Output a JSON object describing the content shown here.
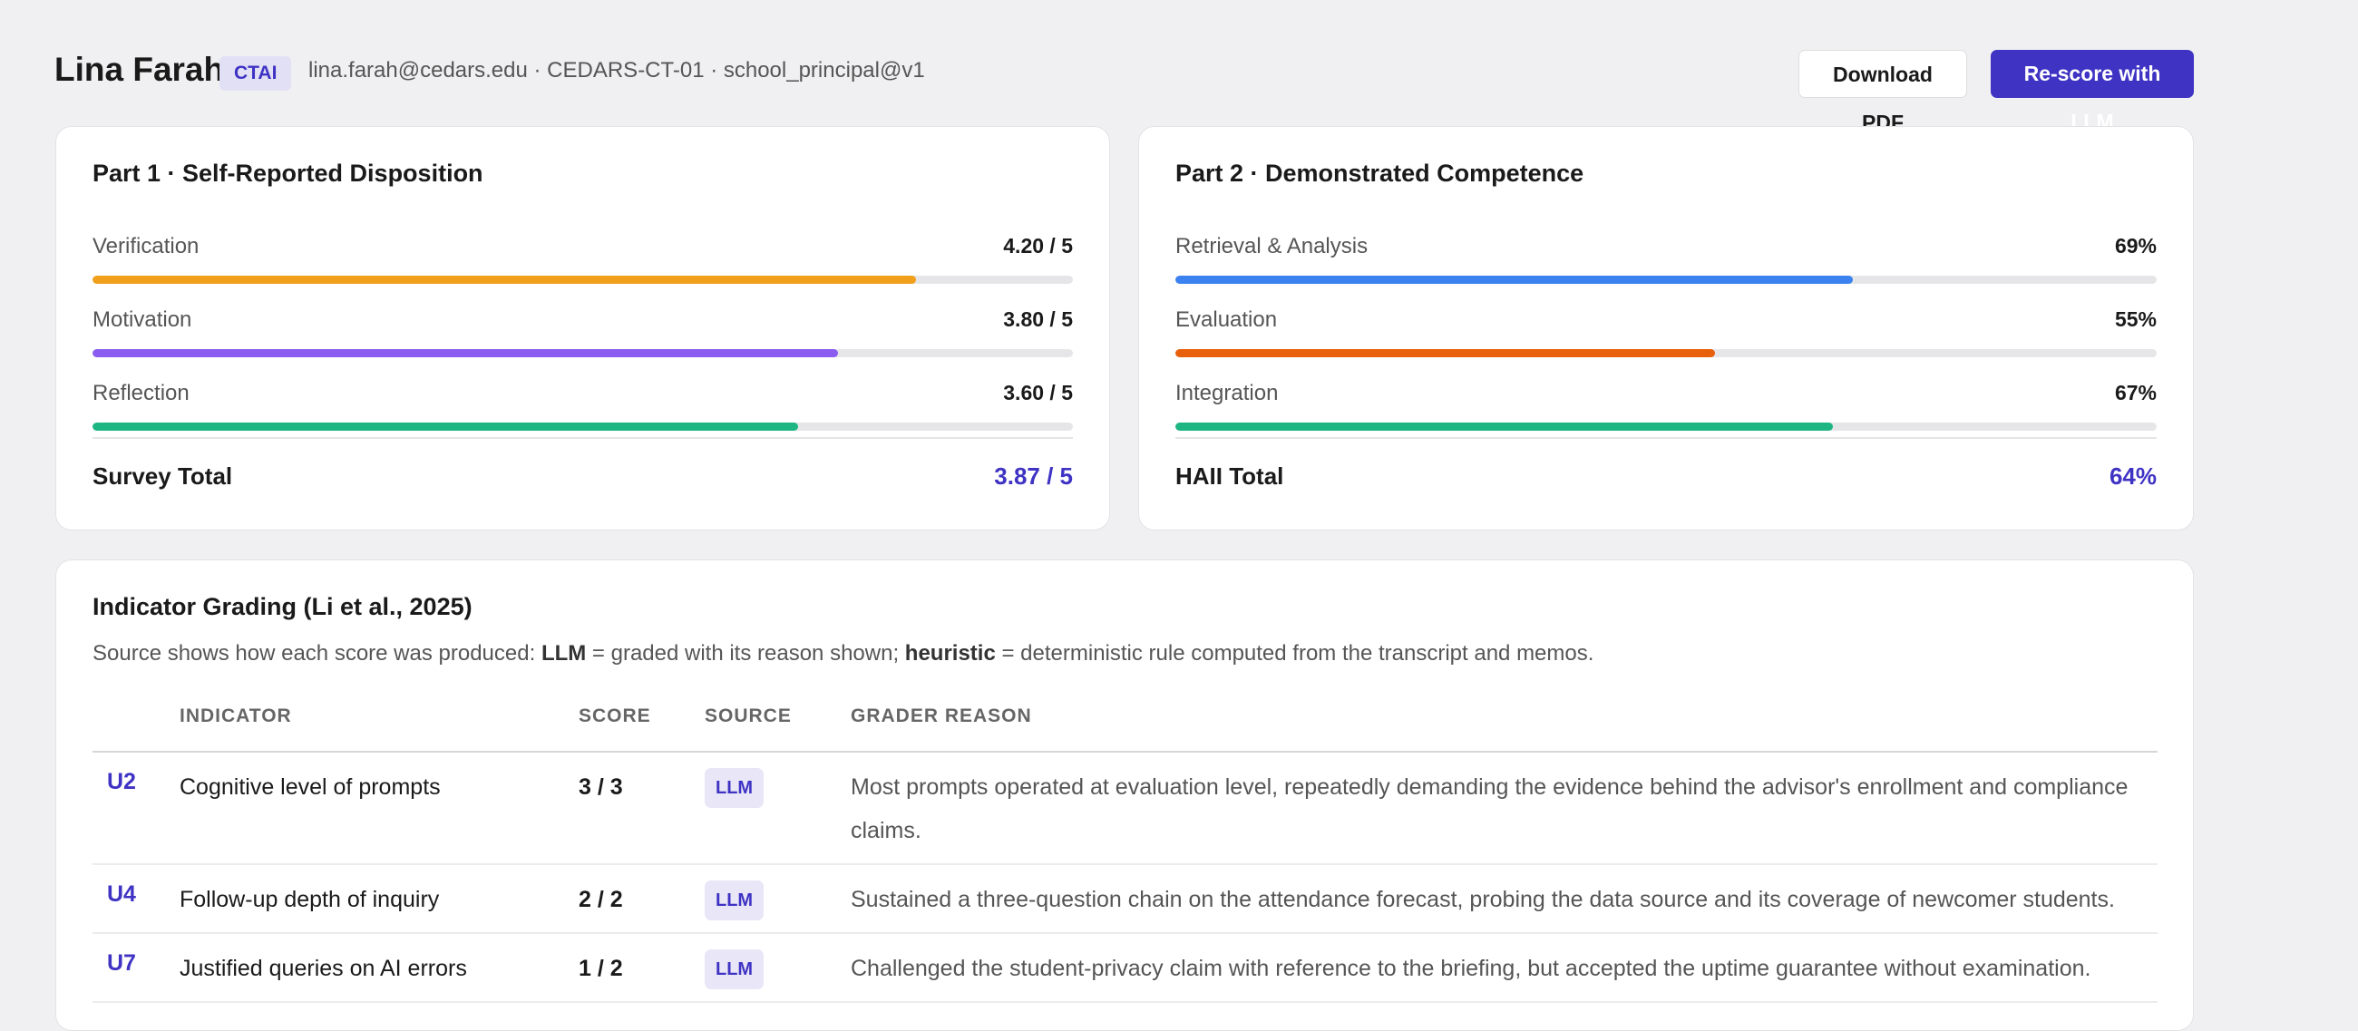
{
  "header": {
    "name": "Lina Farah",
    "badge": "CTAI",
    "meta": "lina.farah@cedars.edu · CEDARS-CT-01 · school_principal@v1",
    "buttons": [
      "Download PDF",
      "Re-score with LLM"
    ]
  },
  "part1": {
    "title": "Part 1 · Self-Reported Disposition",
    "max": 5,
    "rows": [
      {
        "name": "Verification",
        "label": "4.20 / 5",
        "value": 4.2,
        "color": "#f0a01a"
      },
      {
        "name": "Motivation",
        "label": "3.80 / 5",
        "value": 3.8,
        "color": "#8b5cf0"
      },
      {
        "name": "Reflection",
        "label": "3.60 / 5",
        "value": 3.6,
        "color": "#1db682"
      }
    ],
    "total_name": "Survey Total",
    "total_label": "3.87 / 5"
  },
  "part2": {
    "title": "Part 2 · Demonstrated Competence",
    "max": 100,
    "rows": [
      {
        "name": "Retrieval & Analysis",
        "label": "69%",
        "value": 69,
        "color": "#3b82f0"
      },
      {
        "name": "Evaluation",
        "label": "55%",
        "value": 55,
        "color": "#e8600c"
      },
      {
        "name": "Integration",
        "label": "67%",
        "value": 67,
        "color": "#1db682"
      }
    ],
    "total_name": "HAII Total",
    "total_label": "64%"
  },
  "grading": {
    "title": "Indicator Grading (Li et al., 2025)",
    "description": [
      "Source shows how each score was produced: ",
      "LLM",
      " = graded with its reason shown; ",
      "heuristic",
      " = deterministic rule computed from the transcript and memos."
    ],
    "columns": [
      "INDICATOR",
      "SCORE",
      "SOURCE",
      "GRADER REASON"
    ],
    "rows": [
      [
        "U2",
        "Cognitive level of prompts",
        "3 / 3",
        "LLM",
        "Most prompts operated at evaluation level, repeatedly demanding the evidence behind the advisor's enrollment and compliance claims."
      ],
      [
        "U4",
        "Follow-up depth of inquiry",
        "2 / 2",
        "LLM",
        "Sustained a three-question chain on the attendance forecast, probing the data source and its coverage of newcomer students."
      ],
      [
        "U7",
        "Justified queries on AI errors",
        "1 / 2",
        "LLM",
        "Challenged the student-privacy claim with reference to the briefing, but accepted the uptime guarantee without examination."
      ]
    ]
  }
}
